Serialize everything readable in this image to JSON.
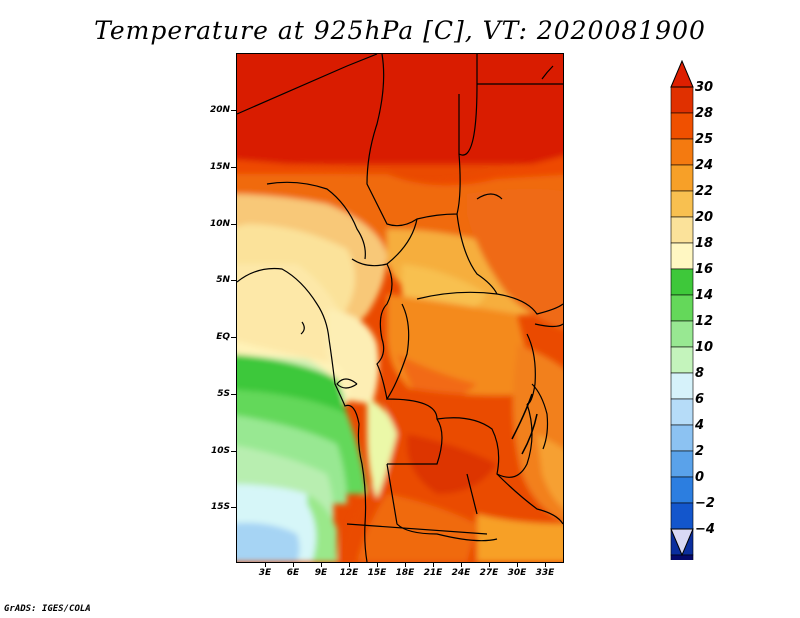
{
  "title": "Temperature at 925hPa [C], VT: 2020081900",
  "credit": "GrADS: IGES/COLA",
  "map": {
    "lat_labels": [
      "20N",
      "15N",
      "10N",
      "5N",
      "EQ",
      "5S",
      "10S",
      "15S"
    ],
    "lon_labels": [
      "3E",
      "6E",
      "9E",
      "12E",
      "15E",
      "18E",
      "21E",
      "24E",
      "27E",
      "30E",
      "33E"
    ]
  },
  "colorbar": {
    "labels": [
      "30",
      "28",
      "25",
      "24",
      "22",
      "20",
      "18",
      "16",
      "14",
      "12",
      "10",
      "8",
      "6",
      "4",
      "2",
      "0",
      "−2",
      "−4"
    ],
    "colors": [
      "#e03000",
      "#f05000",
      "#f47a10",
      "#f7a028",
      "#f8c050",
      "#fbe29a",
      "#fff7c2",
      "#3ec83a",
      "#64d85a",
      "#98e892",
      "#c4f4bc",
      "#d6f2fa",
      "#b6dcf8",
      "#8cc2f2",
      "#5aa2ea",
      "#2c7ee0",
      "#1356cc",
      "#0a2e9e",
      "#060a6c"
    ],
    "arrow_top_color": "#dd1f00",
    "arrow_bottom_color": "#d8d8f4"
  }
}
